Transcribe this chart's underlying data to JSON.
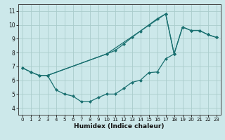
{
  "xlabel": "Humidex (Indice chaleur)",
  "xlim": [
    -0.5,
    23.5
  ],
  "ylim": [
    3.5,
    11.5
  ],
  "xticks": [
    0,
    1,
    2,
    3,
    4,
    5,
    6,
    7,
    8,
    9,
    10,
    11,
    12,
    13,
    14,
    15,
    16,
    17,
    18,
    19,
    20,
    21,
    22,
    23
  ],
  "yticks": [
    4,
    5,
    6,
    7,
    8,
    9,
    10,
    11
  ],
  "background_color": "#cce8ea",
  "grid_color": "#aacccc",
  "line_color": "#1a7070",
  "line1_x": [
    0,
    1,
    2,
    3,
    4,
    5,
    6,
    7,
    8,
    9,
    10,
    11,
    12,
    13,
    14,
    15,
    16,
    17,
    18
  ],
  "line1_y": [
    6.9,
    6.6,
    6.35,
    6.35,
    5.3,
    5.0,
    4.85,
    4.45,
    4.45,
    4.75,
    5.0,
    5.0,
    5.4,
    5.85,
    6.0,
    6.55,
    6.6,
    7.55,
    7.9
  ],
  "line2_x": [
    0,
    1,
    2,
    3,
    10,
    11,
    12,
    13,
    14,
    15,
    16,
    17,
    18,
    19,
    20,
    21,
    22,
    23
  ],
  "line2_y": [
    6.9,
    6.6,
    6.35,
    6.35,
    7.9,
    8.15,
    8.6,
    9.1,
    9.55,
    10.0,
    10.45,
    10.8,
    7.9,
    9.85,
    9.6,
    9.6,
    9.3,
    9.1
  ],
  "line3_x": [
    3,
    10,
    17,
    18,
    19,
    20,
    21,
    22,
    23
  ],
  "line3_y": [
    6.35,
    7.9,
    10.8,
    7.9,
    9.85,
    9.6,
    9.6,
    9.3,
    9.1
  ],
  "markersize": 2.5
}
